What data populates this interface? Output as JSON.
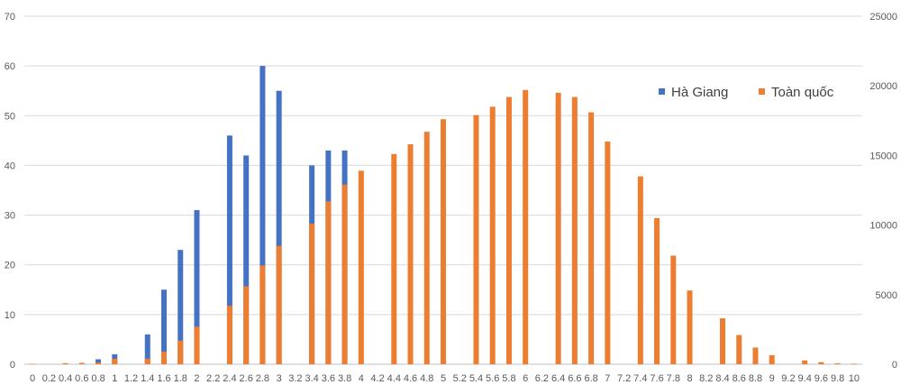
{
  "chart_data": {
    "type": "bar",
    "title": "",
    "xlabel": "",
    "ylabel": "",
    "y2label": "",
    "grid": true,
    "legend_position": "top-right",
    "x": [
      "0",
      "0.2",
      "0.4",
      "0.6",
      "0.8",
      "1",
      "1.2",
      "1.4",
      "1.6",
      "1.8",
      "2",
      "2.2",
      "2.4",
      "2.6",
      "2.8",
      "3",
      "3.2",
      "3.4",
      "3.6",
      "3.8",
      "4",
      "4.2",
      "4.4",
      "4.6",
      "4.8",
      "5",
      "5.2",
      "5.4",
      "5.6",
      "5.8",
      "6",
      "6.2",
      "6.4",
      "6.6",
      "6.8",
      "7",
      "7.2",
      "7.4",
      "7.6",
      "7.8",
      "8",
      "8.2",
      "8.4",
      "8.6",
      "8.8",
      "9",
      "9.2",
      "9.4",
      "9.6",
      "9.8",
      "10"
    ],
    "ylim": [
      0,
      70
    ],
    "yticks": [
      0,
      10,
      20,
      30,
      40,
      50,
      60,
      70
    ],
    "y2lim": [
      0,
      25000
    ],
    "y2ticks": [
      0,
      5000,
      10000,
      15000,
      20000,
      25000
    ],
    "series": [
      {
        "name": "Hà Giang",
        "axis": "left",
        "color": "#4472C4",
        "values": [
          0,
          0,
          0,
          0,
          1,
          2,
          0,
          6,
          15,
          23,
          31,
          0,
          46,
          42,
          60,
          55,
          0,
          40,
          43,
          43,
          null,
          null,
          null,
          null,
          null,
          null,
          null,
          null,
          null,
          null,
          null,
          null,
          null,
          null,
          null,
          null,
          null,
          null,
          null,
          null,
          null,
          null,
          null,
          null,
          null,
          null,
          null,
          null,
          null,
          null,
          null
        ]
      },
      {
        "name": "Toàn quốc",
        "axis": "right",
        "color": "#ED7D31",
        "values": [
          30,
          0,
          80,
          100,
          120,
          400,
          0,
          400,
          900,
          1700,
          2700,
          0,
          4200,
          5600,
          7100,
          8500,
          0,
          10100,
          11700,
          12900,
          13900,
          0,
          15100,
          15800,
          16700,
          17600,
          0,
          17900,
          18500,
          19200,
          19700,
          0,
          19500,
          19200,
          18100,
          16000,
          0,
          13500,
          10500,
          7800,
          5300,
          0,
          3300,
          2100,
          1200,
          650,
          0,
          280,
          150,
          70,
          40
        ]
      }
    ]
  }
}
